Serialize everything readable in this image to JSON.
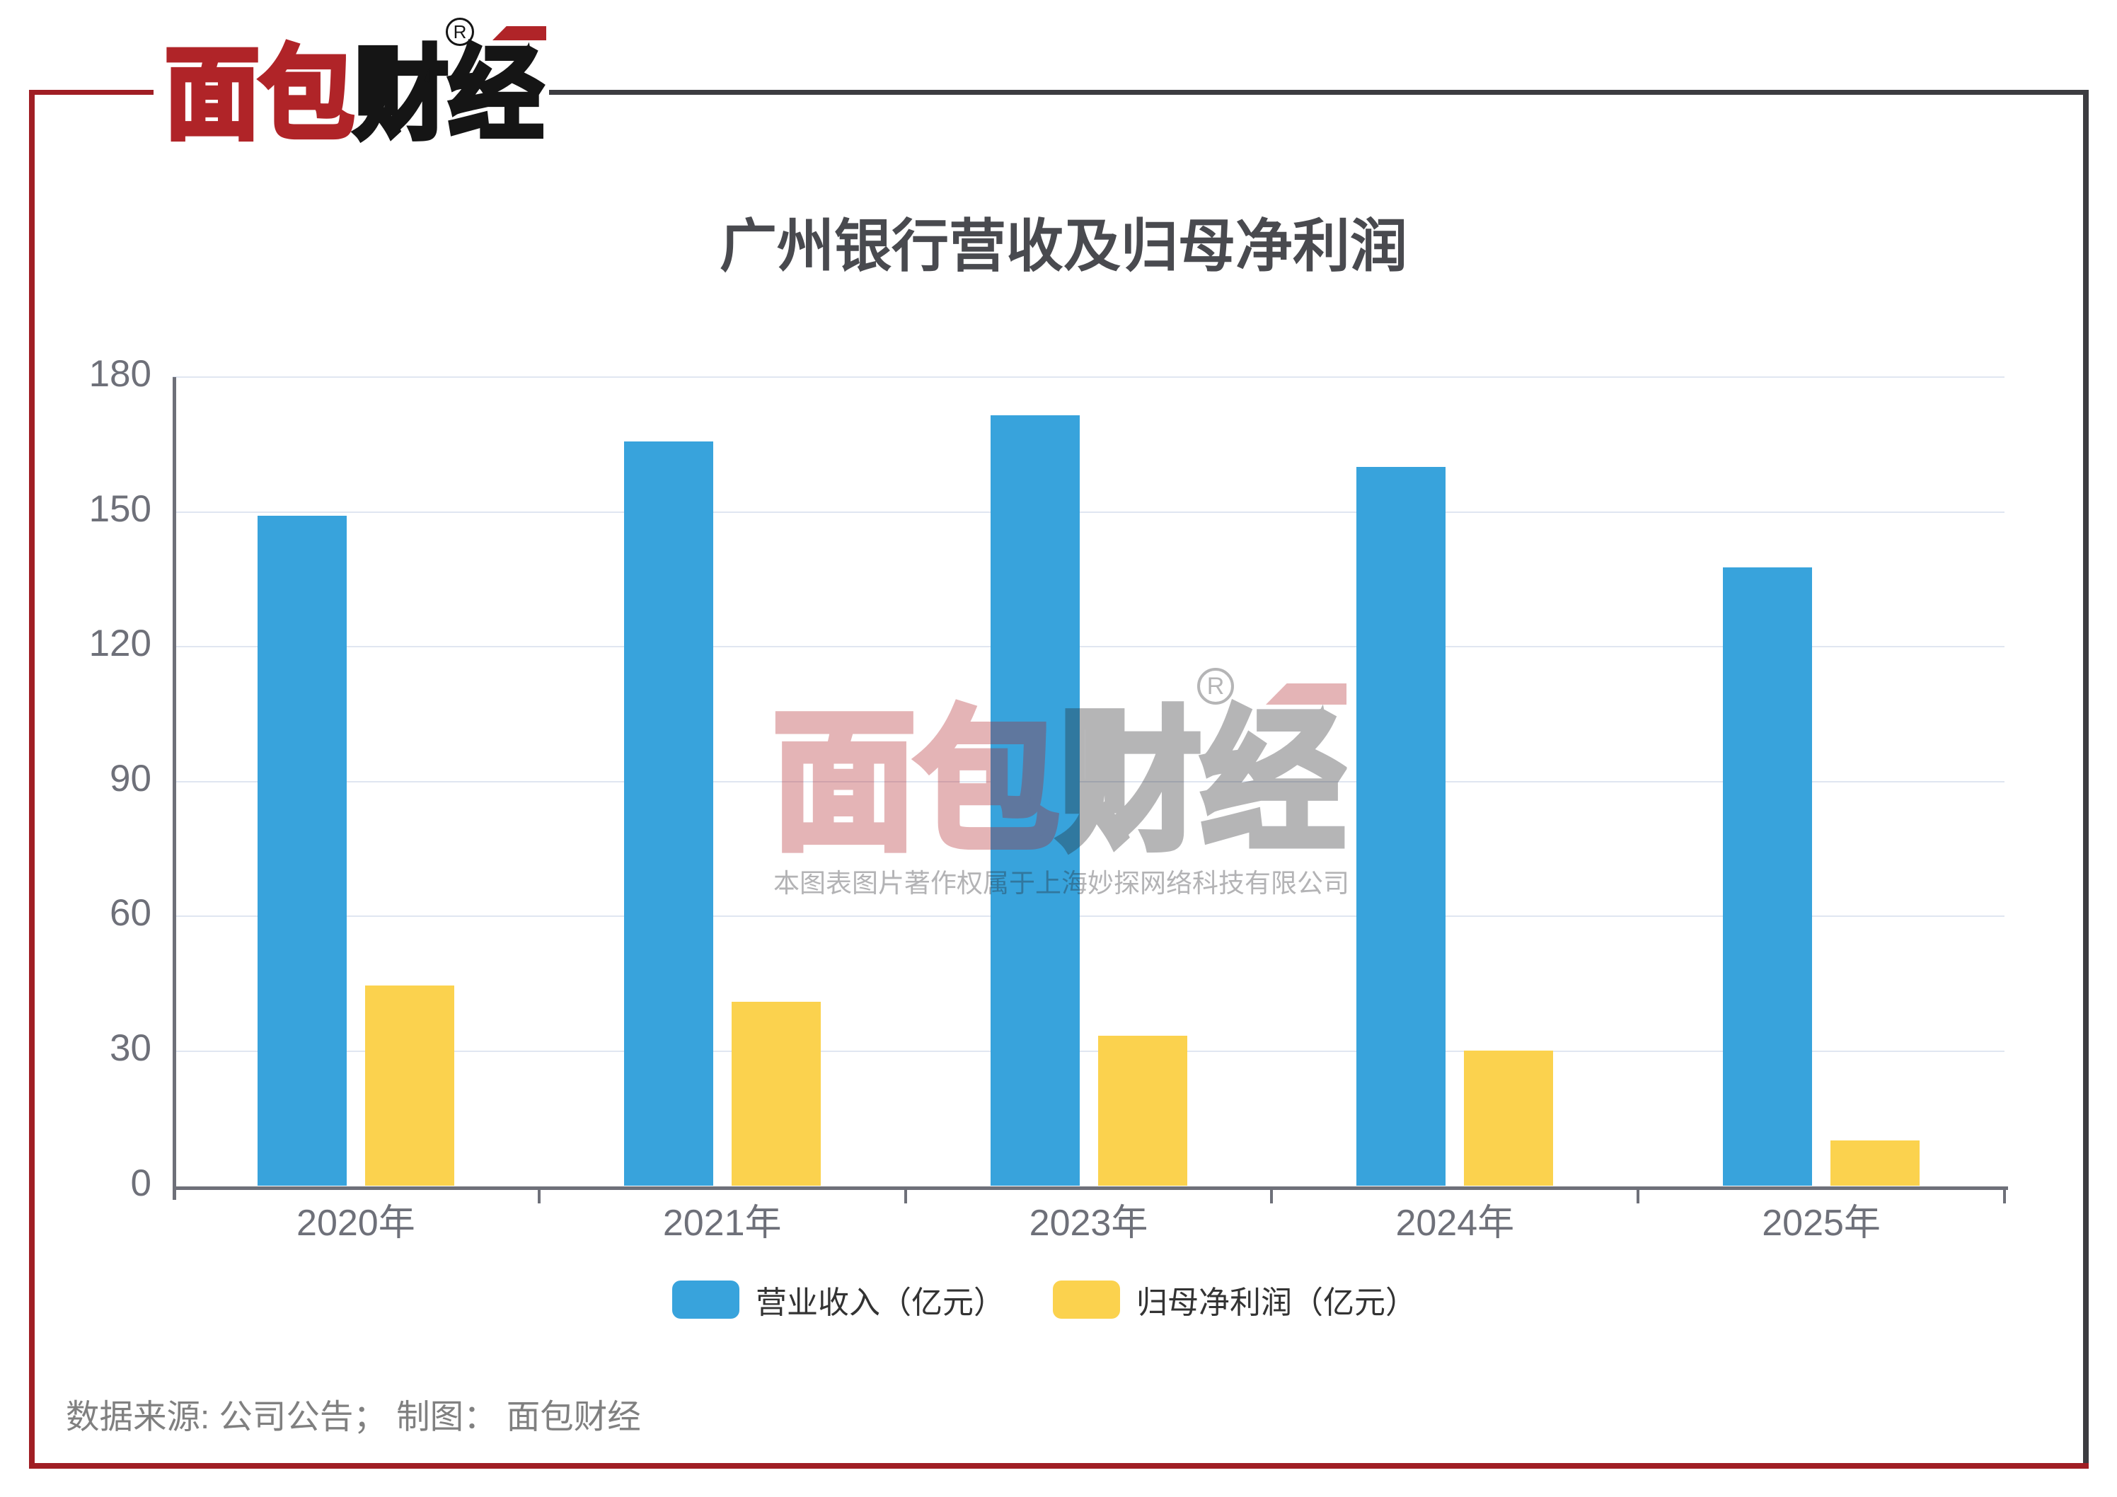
{
  "brand": {
    "logo_red_text": "面包",
    "logo_black_text": "财经",
    "registered_mark": "R"
  },
  "chart_data": {
    "type": "bar",
    "title": "广州银行营收及归母净利润",
    "categories": [
      "2020年",
      "2021年",
      "2023年",
      "2024年",
      "2025年"
    ],
    "series": [
      {
        "name": "营业收入（亿元）",
        "values": [
          149.18,
          165.64,
          171.53,
          160.03,
          137.61
        ]
      },
      {
        "name": "归母净利润（亿元）",
        "values": [
          44.55,
          41.01,
          33.39,
          30.17,
          10.12
        ]
      }
    ],
    "xlabel": "",
    "ylabel": "",
    "ylim": [
      0,
      180
    ],
    "yticks": [
      0,
      30,
      60,
      90,
      120,
      150,
      180
    ],
    "grid": true,
    "legend_position": "bottom"
  },
  "watermark": {
    "logo_red_text": "面包",
    "logo_gray_text": "财经",
    "registered_mark": "R",
    "copyright_text": "本图表图片著作权属于上海妙探网络科技有限公司"
  },
  "footer": {
    "source_note": "数据来源: 公司公告； 制图： 面包财经"
  },
  "colors": {
    "series_revenue": "#38a3dc",
    "series_profit": "#fbd24e",
    "frame_red": "#a01e24",
    "frame_dark": "#3c3c40",
    "logo_red": "#b02428",
    "logo_black": "#151515",
    "gridline": "#e0e6f1",
    "axis": "#6e7079",
    "axis_label": "#6e7079",
    "title_text": "#494a4f",
    "legend_text": "#333333",
    "source_text": "#808080"
  }
}
